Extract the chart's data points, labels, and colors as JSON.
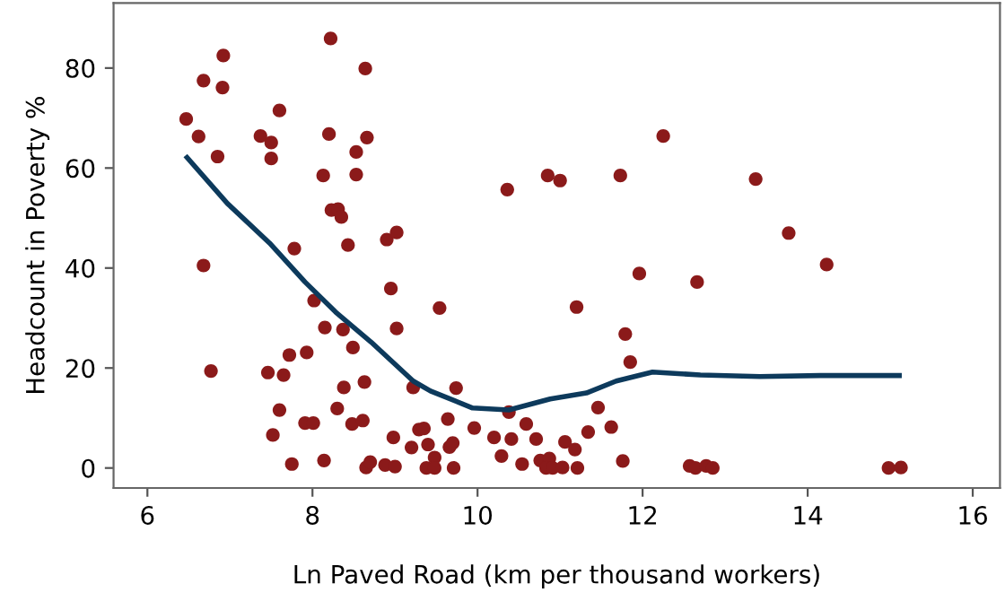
{
  "chart_data": {
    "type": "scatter",
    "xlabel": "Ln Paved Road (km per thousand workers)",
    "ylabel": "Headcount in Poverty %",
    "xlim": [
      5.59,
      16.33
    ],
    "ylim": [
      -4,
      93
    ],
    "xticks": [
      6,
      8,
      10,
      12,
      14,
      16
    ],
    "yticks": [
      0,
      20,
      40,
      60,
      80
    ],
    "grid": false,
    "legend": false,
    "marker": "circle",
    "series": [
      {
        "color": "#8b1a1a",
        "x": [
          6.47,
          6.62,
          6.68,
          6.92,
          6.91,
          6.85,
          6.68,
          6.77,
          7.37,
          7.5,
          7.6,
          7.5,
          7.78,
          8.22,
          8.2,
          8.64,
          8.66,
          8.53,
          8.53,
          8.13,
          8.23,
          8.31,
          8.35,
          8.43,
          8.9,
          9.02,
          8.95,
          9.02,
          8.02,
          8.15,
          8.37,
          8.49,
          7.72,
          7.93,
          7.46,
          7.65,
          8.38,
          8.63,
          9.22,
          7.6,
          8.3,
          7.52,
          7.91,
          8.01,
          8.48,
          8.61,
          8.98,
          9.29,
          9.35,
          9.2,
          9.4,
          7.75,
          8.14,
          8.65,
          8.7,
          8.88,
          9.0,
          9.38,
          10.36,
          10.85,
          11.0,
          11.73,
          12.25,
          9.54,
          11.2,
          11.96,
          12.66,
          11.79,
          11.85,
          9.74,
          9.64,
          9.96,
          10.38,
          10.59,
          11.46,
          11.62,
          11.34,
          10.2,
          10.41,
          10.71,
          11.06,
          11.18,
          9.66,
          9.7,
          9.48,
          10.29,
          10.54,
          10.76,
          10.87,
          10.83,
          10.91,
          11.03,
          11.21,
          11.76,
          9.48,
          9.71,
          12.57,
          12.64,
          12.77,
          12.85,
          13.37,
          13.77,
          14.23,
          14.98,
          15.13
        ],
        "values": [
          69.8,
          66.3,
          77.5,
          82.5,
          76.1,
          62.3,
          40.5,
          19.4,
          66.4,
          65.1,
          71.5,
          61.9,
          43.9,
          85.9,
          66.8,
          79.9,
          66.1,
          63.2,
          58.7,
          58.5,
          51.6,
          51.8,
          50.2,
          44.6,
          45.7,
          47.1,
          35.9,
          27.9,
          33.5,
          28.1,
          27.7,
          24.1,
          22.6,
          23.1,
          19.1,
          18.6,
          16.1,
          17.2,
          16.1,
          11.6,
          11.9,
          6.6,
          9.0,
          9.0,
          8.8,
          9.5,
          6.1,
          7.7,
          7.9,
          4.1,
          4.7,
          0.8,
          1.5,
          0.1,
          1.2,
          0.6,
          0.3,
          0,
          55.7,
          58.5,
          57.5,
          58.5,
          66.4,
          32.0,
          32.2,
          38.9,
          37.2,
          26.8,
          21.2,
          16.0,
          9.8,
          8.0,
          11.2,
          8.8,
          12.1,
          8.2,
          7.2,
          6.1,
          5.8,
          5.8,
          5.2,
          3.7,
          4.2,
          5.0,
          2.1,
          2.4,
          0.8,
          1.5,
          1.9,
          0,
          0,
          0.1,
          0,
          1.4,
          0,
          0,
          0.4,
          0,
          0.4,
          0,
          57.8,
          47.0,
          40.7,
          0,
          0.1
        ]
      },
      {
        "type": "line",
        "color": "#0d3a5c",
        "marker": "none",
        "line_style": "solid",
        "x": [
          6.48,
          6.97,
          7.48,
          7.91,
          8.28,
          8.71,
          9.22,
          9.43,
          9.94,
          10.38,
          10.88,
          11.32,
          11.68,
          12.12,
          12.7,
          13.42,
          14.15,
          15.11
        ],
        "values": [
          62.1,
          52.9,
          45.0,
          37.2,
          31.2,
          25.2,
          17.4,
          15.4,
          12.0,
          11.6,
          13.8,
          15.0,
          17.4,
          19.2,
          18.6,
          18.3,
          18.5,
          18.5
        ]
      }
    ]
  }
}
